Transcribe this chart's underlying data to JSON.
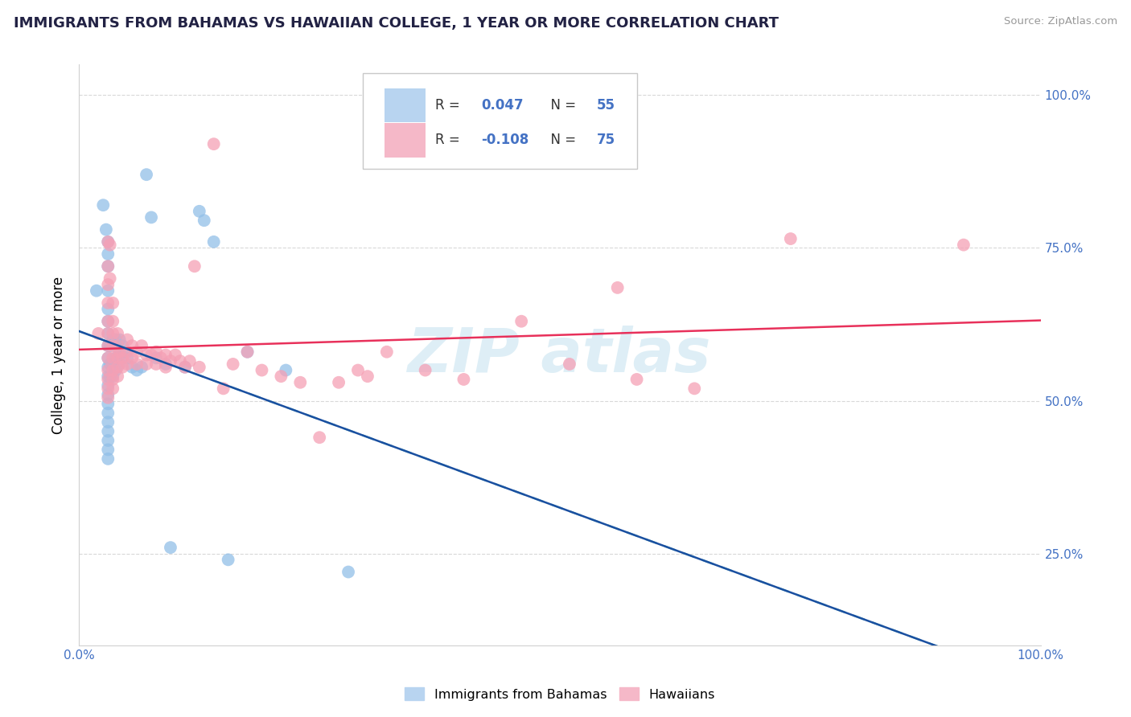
{
  "title": "IMMIGRANTS FROM BAHAMAS VS HAWAIIAN COLLEGE, 1 YEAR OR MORE CORRELATION CHART",
  "source": "Source: ZipAtlas.com",
  "ylabel": "College, 1 year or more",
  "xlim": [
    0.0,
    1.0
  ],
  "ylim": [
    0.1,
    1.05
  ],
  "blue_R": 0.047,
  "blue_N": 55,
  "pink_R": -0.108,
  "pink_N": 75,
  "blue_color": "#92bfe8",
  "pink_color": "#f5a0b5",
  "blue_line_color": "#1a4fa0",
  "pink_line_color": "#e8305a",
  "trendline_dash_color": "#78c8c8",
  "blue_legend_color": "#b8d4f0",
  "pink_legend_color": "#f5b8c8",
  "text_color": "#4472c4",
  "watermark_color": "#c8e4f0",
  "blue_points": [
    [
      0.018,
      0.68
    ],
    [
      0.025,
      0.82
    ],
    [
      0.028,
      0.78
    ],
    [
      0.03,
      0.76
    ],
    [
      0.03,
      0.74
    ],
    [
      0.03,
      0.72
    ],
    [
      0.03,
      0.68
    ],
    [
      0.03,
      0.65
    ],
    [
      0.03,
      0.63
    ],
    [
      0.03,
      0.61
    ],
    [
      0.03,
      0.59
    ],
    [
      0.03,
      0.57
    ],
    [
      0.03,
      0.555
    ],
    [
      0.03,
      0.54
    ],
    [
      0.03,
      0.525
    ],
    [
      0.03,
      0.51
    ],
    [
      0.03,
      0.495
    ],
    [
      0.03,
      0.48
    ],
    [
      0.03,
      0.465
    ],
    [
      0.03,
      0.45
    ],
    [
      0.03,
      0.435
    ],
    [
      0.03,
      0.42
    ],
    [
      0.03,
      0.405
    ],
    [
      0.032,
      0.59
    ],
    [
      0.032,
      0.56
    ],
    [
      0.032,
      0.54
    ],
    [
      0.035,
      0.6
    ],
    [
      0.035,
      0.56
    ],
    [
      0.035,
      0.54
    ],
    [
      0.038,
      0.6
    ],
    [
      0.038,
      0.57
    ],
    [
      0.038,
      0.55
    ],
    [
      0.04,
      0.57
    ],
    [
      0.042,
      0.6
    ],
    [
      0.042,
      0.58
    ],
    [
      0.042,
      0.56
    ],
    [
      0.045,
      0.59
    ],
    [
      0.048,
      0.58
    ],
    [
      0.05,
      0.57
    ],
    [
      0.055,
      0.555
    ],
    [
      0.06,
      0.55
    ],
    [
      0.065,
      0.555
    ],
    [
      0.07,
      0.87
    ],
    [
      0.075,
      0.8
    ],
    [
      0.08,
      0.57
    ],
    [
      0.09,
      0.56
    ],
    [
      0.095,
      0.26
    ],
    [
      0.11,
      0.555
    ],
    [
      0.125,
      0.81
    ],
    [
      0.13,
      0.795
    ],
    [
      0.14,
      0.76
    ],
    [
      0.155,
      0.24
    ],
    [
      0.175,
      0.58
    ],
    [
      0.215,
      0.55
    ],
    [
      0.28,
      0.22
    ]
  ],
  "pink_points": [
    [
      0.02,
      0.61
    ],
    [
      0.03,
      0.76
    ],
    [
      0.03,
      0.72
    ],
    [
      0.03,
      0.69
    ],
    [
      0.03,
      0.66
    ],
    [
      0.03,
      0.63
    ],
    [
      0.03,
      0.61
    ],
    [
      0.03,
      0.59
    ],
    [
      0.03,
      0.57
    ],
    [
      0.03,
      0.55
    ],
    [
      0.03,
      0.535
    ],
    [
      0.03,
      0.52
    ],
    [
      0.03,
      0.505
    ],
    [
      0.032,
      0.755
    ],
    [
      0.032,
      0.7
    ],
    [
      0.035,
      0.66
    ],
    [
      0.035,
      0.63
    ],
    [
      0.035,
      0.61
    ],
    [
      0.035,
      0.59
    ],
    [
      0.035,
      0.57
    ],
    [
      0.035,
      0.55
    ],
    [
      0.035,
      0.535
    ],
    [
      0.035,
      0.52
    ],
    [
      0.04,
      0.61
    ],
    [
      0.04,
      0.59
    ],
    [
      0.04,
      0.57
    ],
    [
      0.04,
      0.555
    ],
    [
      0.04,
      0.54
    ],
    [
      0.042,
      0.58
    ],
    [
      0.045,
      0.57
    ],
    [
      0.045,
      0.555
    ],
    [
      0.05,
      0.6
    ],
    [
      0.05,
      0.58
    ],
    [
      0.05,
      0.56
    ],
    [
      0.055,
      0.59
    ],
    [
      0.055,
      0.57
    ],
    [
      0.06,
      0.58
    ],
    [
      0.06,
      0.56
    ],
    [
      0.065,
      0.59
    ],
    [
      0.07,
      0.575
    ],
    [
      0.07,
      0.56
    ],
    [
      0.075,
      0.575
    ],
    [
      0.08,
      0.58
    ],
    [
      0.08,
      0.56
    ],
    [
      0.085,
      0.57
    ],
    [
      0.09,
      0.575
    ],
    [
      0.09,
      0.555
    ],
    [
      0.095,
      0.565
    ],
    [
      0.1,
      0.575
    ],
    [
      0.105,
      0.565
    ],
    [
      0.11,
      0.555
    ],
    [
      0.115,
      0.565
    ],
    [
      0.12,
      0.72
    ],
    [
      0.125,
      0.555
    ],
    [
      0.14,
      0.92
    ],
    [
      0.15,
      0.52
    ],
    [
      0.16,
      0.56
    ],
    [
      0.175,
      0.58
    ],
    [
      0.19,
      0.55
    ],
    [
      0.21,
      0.54
    ],
    [
      0.23,
      0.53
    ],
    [
      0.25,
      0.44
    ],
    [
      0.27,
      0.53
    ],
    [
      0.29,
      0.55
    ],
    [
      0.3,
      0.54
    ],
    [
      0.32,
      0.58
    ],
    [
      0.36,
      0.55
    ],
    [
      0.4,
      0.535
    ],
    [
      0.46,
      0.63
    ],
    [
      0.51,
      0.56
    ],
    [
      0.56,
      0.685
    ],
    [
      0.58,
      0.535
    ],
    [
      0.64,
      0.52
    ],
    [
      0.74,
      0.765
    ],
    [
      0.92,
      0.755
    ]
  ]
}
